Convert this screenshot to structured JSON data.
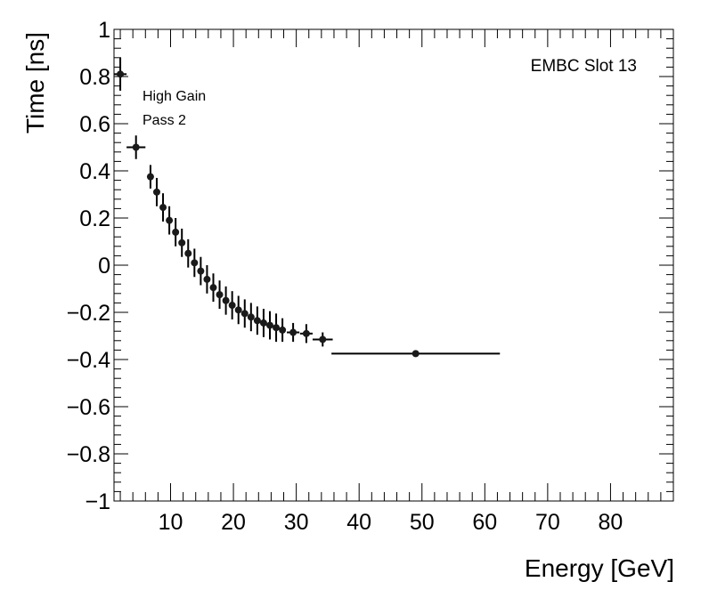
{
  "chart_data": {
    "type": "scatter",
    "style": "points-with-error-bars",
    "xlabel": "Energy [GeV]",
    "ylabel": "Time [ns]",
    "xlim": [
      1,
      90
    ],
    "ylim": [
      -1,
      1
    ],
    "x_ticks": [
      10,
      20,
      30,
      40,
      50,
      60,
      70,
      80
    ],
    "y_ticks": [
      -1,
      -0.8,
      -0.6,
      -0.4,
      -0.2,
      0,
      0.2,
      0.4,
      0.6,
      0.8,
      1
    ],
    "x_tick_labels": [
      "10",
      "20",
      "30",
      "40",
      "50",
      "60",
      "70",
      "80"
    ],
    "y_tick_labels": [
      "−1",
      "−0.8",
      "−0.6",
      "−0.4",
      "−0.2",
      "0",
      "0.2",
      "0.4",
      "0.6",
      "0.8",
      "1"
    ],
    "annotations": {
      "label": "EMBC Slot 13",
      "gain": "High Gain",
      "pass": "Pass 2"
    },
    "points": [
      {
        "x": 2.0,
        "y": 0.81,
        "xerr": 1.0,
        "yerr": 0.07
      },
      {
        "x": 4.5,
        "y": 0.5,
        "xerr": 1.5,
        "yerr": 0.05
      },
      {
        "x": 6.8,
        "y": 0.375,
        "xerr": 0.45,
        "yerr": 0.05
      },
      {
        "x": 7.8,
        "y": 0.31,
        "xerr": 0.45,
        "yerr": 0.06
      },
      {
        "x": 8.8,
        "y": 0.245,
        "xerr": 0.45,
        "yerr": 0.06
      },
      {
        "x": 9.8,
        "y": 0.19,
        "xerr": 0.45,
        "yerr": 0.06
      },
      {
        "x": 10.8,
        "y": 0.14,
        "xerr": 0.45,
        "yerr": 0.06
      },
      {
        "x": 11.8,
        "y": 0.095,
        "xerr": 0.45,
        "yerr": 0.06
      },
      {
        "x": 12.8,
        "y": 0.05,
        "xerr": 0.45,
        "yerr": 0.06
      },
      {
        "x": 13.8,
        "y": 0.01,
        "xerr": 0.45,
        "yerr": 0.06
      },
      {
        "x": 14.8,
        "y": -0.025,
        "xerr": 0.45,
        "yerr": 0.06
      },
      {
        "x": 15.8,
        "y": -0.06,
        "xerr": 0.45,
        "yerr": 0.06
      },
      {
        "x": 16.8,
        "y": -0.095,
        "xerr": 0.45,
        "yerr": 0.06
      },
      {
        "x": 17.8,
        "y": -0.125,
        "xerr": 0.45,
        "yerr": 0.06
      },
      {
        "x": 18.8,
        "y": -0.15,
        "xerr": 0.45,
        "yerr": 0.06
      },
      {
        "x": 19.8,
        "y": -0.17,
        "xerr": 0.45,
        "yerr": 0.06
      },
      {
        "x": 20.8,
        "y": -0.19,
        "xerr": 0.45,
        "yerr": 0.06
      },
      {
        "x": 21.8,
        "y": -0.205,
        "xerr": 0.45,
        "yerr": 0.06
      },
      {
        "x": 22.8,
        "y": -0.22,
        "xerr": 0.45,
        "yerr": 0.06
      },
      {
        "x": 23.8,
        "y": -0.235,
        "xerr": 0.45,
        "yerr": 0.06
      },
      {
        "x": 24.8,
        "y": -0.245,
        "xerr": 0.45,
        "yerr": 0.06
      },
      {
        "x": 25.8,
        "y": -0.255,
        "xerr": 0.45,
        "yerr": 0.06
      },
      {
        "x": 26.8,
        "y": -0.265,
        "xerr": 0.45,
        "yerr": 0.06
      },
      {
        "x": 27.8,
        "y": -0.275,
        "xerr": 0.45,
        "yerr": 0.05
      },
      {
        "x": 29.5,
        "y": -0.285,
        "xerr": 1.0,
        "yerr": 0.04
      },
      {
        "x": 31.6,
        "y": -0.29,
        "xerr": 1.0,
        "yerr": 0.04
      },
      {
        "x": 34.2,
        "y": -0.315,
        "xerr": 1.6,
        "yerr": 0.03
      },
      {
        "x": 49.0,
        "y": -0.375,
        "xerr": 13.4,
        "yerr": 0.01
      }
    ]
  }
}
